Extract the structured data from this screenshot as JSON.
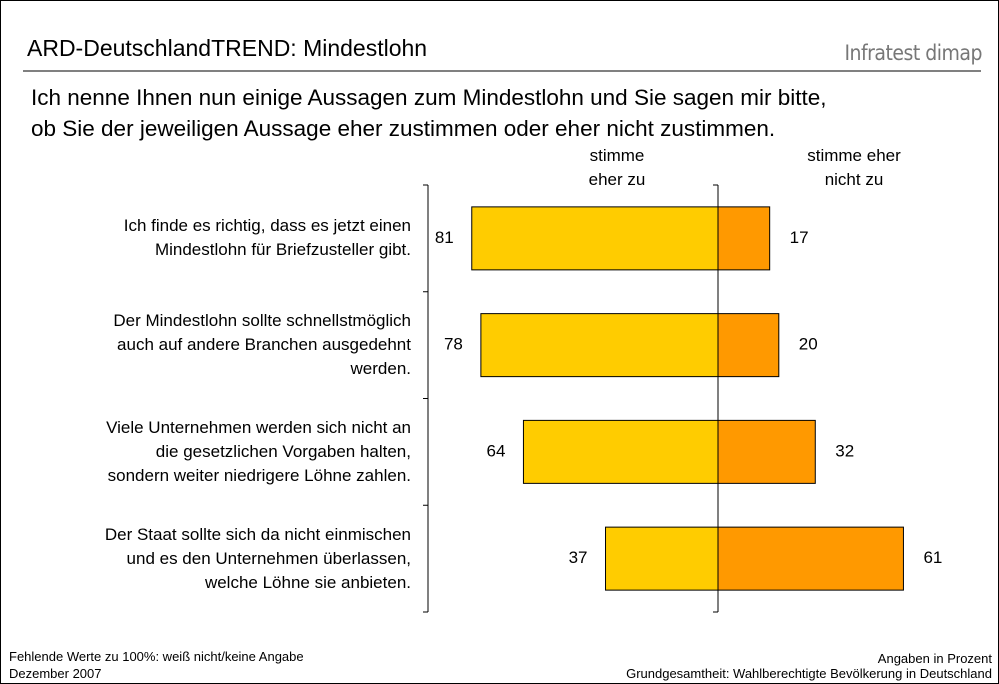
{
  "chart_data": {
    "type": "diverging-bar",
    "title": "ARD-DeutschlandTREND: Mindestlohn",
    "brand": "Infratest dimap",
    "subtitle": [
      "Ich nenne Ihnen nun einige Aussagen zum Mindestlohn und Sie sagen mir bitte,",
      "ob Sie der jeweiligen Aussage eher zustimmen oder eher nicht zustimmen."
    ],
    "categories": [
      [
        "Ich finde es richtig, dass es jetzt einen",
        "Mindestlohn für Briefzusteller gibt."
      ],
      [
        "Der Mindestlohn sollte schnellstmöglich",
        "auch auf andere Branchen ausgedehnt",
        "werden."
      ],
      [
        "Viele Unternehmen werden sich nicht an",
        "die gesetzlichen Vorgaben halten,",
        "sondern weiter niedrigere Löhne zahlen."
      ],
      [
        "Der Staat sollte sich da nicht einmischen",
        "und es den Unternehmen überlassen,",
        "welche Löhne sie anbieten."
      ]
    ],
    "series": [
      {
        "name": "stimme eher zu",
        "color": "#FFCC00",
        "values": [
          81,
          78,
          64,
          37
        ]
      },
      {
        "name": "stimme eher nicht zu",
        "color": "#FF9900",
        "values": [
          17,
          20,
          32,
          61
        ]
      }
    ],
    "footer_left": [
      "Fehlende Werte zu 100%: weiß nicht/keine Angabe",
      "Dezember 2007"
    ],
    "footer_right": [
      "Angaben in Prozent",
      "Grundgesamtheit: Wahlberechtigte Bevölkerung in Deutschland"
    ]
  }
}
